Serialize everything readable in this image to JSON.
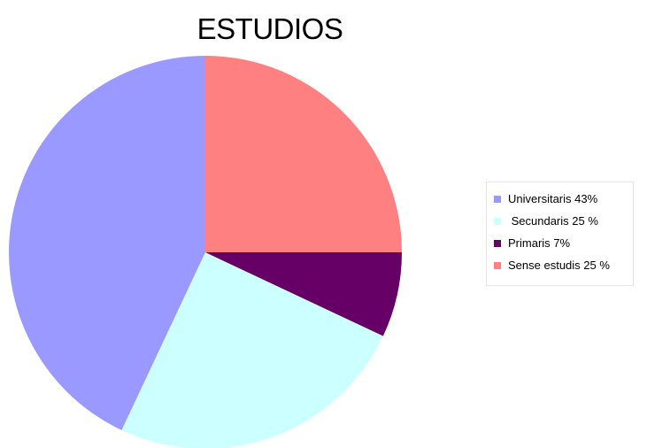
{
  "chart_data": {
    "type": "pie",
    "title": "ESTUDIOS",
    "legend_position": "right",
    "slices": [
      {
        "label": "Universitaris 43%",
        "value": 43,
        "color": "#9999ff"
      },
      {
        "label": " Secundaris 25 %",
        "value": 25,
        "color": "#ccffff"
      },
      {
        "label": "Primaris 7%",
        "value": 7,
        "color": "#660066"
      },
      {
        "label": "Sense estudis 25 %",
        "value": 25,
        "color": "#ff8080"
      }
    ]
  }
}
